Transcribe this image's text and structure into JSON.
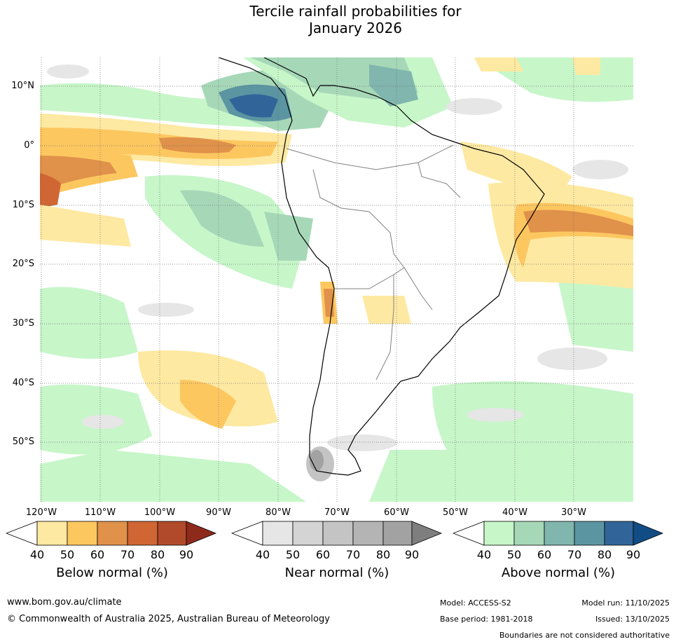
{
  "title": {
    "line1": "Tercile rainfall probabilities for",
    "line2": "January 2026"
  },
  "map": {
    "region": "South America",
    "lat_labels": [
      "10°N",
      "0°",
      "10°S",
      "20°S",
      "30°S",
      "40°S",
      "50°S"
    ],
    "lon_labels": [
      "120°W",
      "110°W",
      "100°W",
      "90°W",
      "80°W",
      "70°W",
      "60°W",
      "50°W",
      "40°W",
      "30°W"
    ]
  },
  "legend": {
    "below": {
      "title": "Below normal (%)",
      "ticks": [
        "40",
        "50",
        "60",
        "70",
        "80",
        "90"
      ],
      "colors": [
        "#ffffff",
        "#fee9a2",
        "#fdc760",
        "#e0914a",
        "#cf6634",
        "#b14a2a",
        "#8e2a1b"
      ]
    },
    "near": {
      "title": "Near normal (%)",
      "ticks": [
        "40",
        "50",
        "60",
        "70",
        "80",
        "90"
      ],
      "colors": [
        "#ffffff",
        "#e6e6e6",
        "#d4d4d4",
        "#c4c4c4",
        "#b4b4b4",
        "#a2a2a2",
        "#7e7e7e"
      ]
    },
    "above": {
      "title": "Above normal (%)",
      "ticks": [
        "40",
        "50",
        "60",
        "70",
        "80",
        "90"
      ],
      "colors": [
        "#ffffff",
        "#c7f6c9",
        "#a6d8b8",
        "#80b6ad",
        "#5b95a2",
        "#316599",
        "#124c85"
      ]
    }
  },
  "footer": {
    "website": "www.bom.gov.au/climate",
    "copyright": "© Commonwealth of Australia 2025, Australian Bureau of Meteorology",
    "model": "Model: ACCESS-S2",
    "model_run": "Model run: 11/10/2025",
    "base_period": "Base period: 1981-2018",
    "issued": "Issued: 13/10/2025",
    "disclaimer": "Boundaries are not considered authoritative"
  }
}
